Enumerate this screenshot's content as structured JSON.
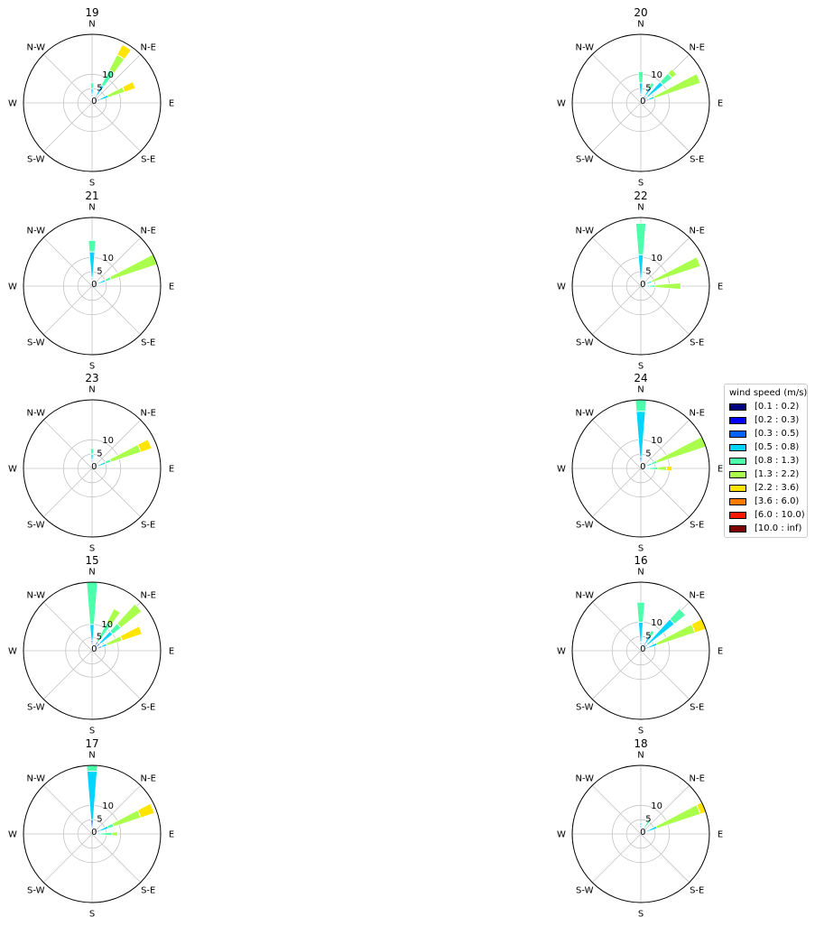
{
  "figure": {
    "direction_labels": [
      "N",
      "N-E",
      "E",
      "S-E",
      "S",
      "S-W",
      "W",
      "N-W"
    ]
  },
  "legend": {
    "title": "wind speed (m/s)",
    "bins": [
      {
        "label": "[0.1 : 0.2)",
        "color": "#00007f"
      },
      {
        "label": "[0.2 : 0.3)",
        "color": "#0000ff"
      },
      {
        "label": "[0.3 : 0.5)",
        "color": "#0063ff"
      },
      {
        "label": "[0.5 : 0.8)",
        "color": "#00d4ff"
      },
      {
        "label": "[0.8 : 1.3)",
        "color": "#4dffaa"
      },
      {
        "label": "[1.3 : 2.2)",
        "color": "#aaff4d"
      },
      {
        "label": "[2.2 : 3.6)",
        "color": "#ffe500"
      },
      {
        "label": "[3.6 : 6.0)",
        "color": "#ff7b00"
      },
      {
        "label": "[6.0 : 10.0)",
        "color": "#ff1700"
      },
      {
        "label": "[10.0 : inf)",
        "color": "#7f0000"
      }
    ]
  },
  "chart_data": [
    {
      "type": "windrose",
      "title": "19",
      "r_ticks": [
        0,
        5,
        10
      ],
      "r_max": 24,
      "directions": [
        {
          "dir": "N",
          "stacks": [
            [
              0.3,
              3
            ],
            [
              0.5,
              5
            ],
            [
              0.8,
              7
            ]
          ]
        },
        {
          "dir": "N-NE",
          "stacks": [
            [
              0.3,
              3
            ],
            [
              0.5,
              7
            ],
            [
              0.8,
              13
            ],
            [
              1.3,
              19
            ],
            [
              2.2,
              23
            ]
          ]
        },
        {
          "dir": "NE-E",
          "stacks": [
            [
              0.3,
              3
            ],
            [
              0.5,
              6
            ],
            [
              1.3,
              12
            ],
            [
              2.2,
              16
            ]
          ]
        }
      ]
    },
    {
      "type": "windrose",
      "title": "20",
      "r_ticks": [
        0,
        5,
        10
      ],
      "r_max": 24,
      "directions": [
        {
          "dir": "N",
          "stacks": [
            [
              0.3,
              3
            ],
            [
              0.5,
              7
            ],
            [
              0.8,
              11
            ]
          ]
        },
        {
          "dir": "N-NE",
          "stacks": [
            [
              0.3,
              3
            ],
            [
              0.5,
              6
            ],
            [
              0.8,
              8
            ]
          ]
        },
        {
          "dir": "NE",
          "stacks": [
            [
              0.3,
              3
            ],
            [
              0.5,
              10
            ],
            [
              0.8,
              14
            ],
            [
              1.3,
              16
            ]
          ]
        },
        {
          "dir": "NE-E",
          "stacks": [
            [
              0.3,
              3
            ],
            [
              0.5,
              5
            ],
            [
              1.3,
              22
            ]
          ]
        }
      ]
    },
    {
      "type": "windrose",
      "title": "21",
      "r_ticks": [
        0,
        5,
        10
      ],
      "r_max": 24,
      "directions": [
        {
          "dir": "N",
          "stacks": [
            [
              0.3,
              3
            ],
            [
              0.5,
              12
            ],
            [
              0.8,
              16
            ]
          ]
        },
        {
          "dir": "NE-E",
          "stacks": [
            [
              0.3,
              2
            ],
            [
              0.5,
              5
            ],
            [
              0.8,
              7
            ],
            [
              1.3,
              24
            ]
          ]
        }
      ]
    },
    {
      "type": "windrose",
      "title": "22",
      "r_ticks": [
        0,
        5,
        10
      ],
      "r_max": 24,
      "directions": [
        {
          "dir": "N",
          "stacks": [
            [
              0.3,
              2
            ],
            [
              0.5,
              11
            ],
            [
              0.8,
              22
            ]
          ]
        },
        {
          "dir": "NE-E",
          "stacks": [
            [
              0.3,
              2
            ],
            [
              0.5,
              4
            ],
            [
              1.3,
              22
            ]
          ]
        },
        {
          "dir": "E",
          "stacks": [
            [
              0.5,
              3
            ],
            [
              0.8,
              5
            ],
            [
              1.3,
              14
            ]
          ]
        }
      ]
    },
    {
      "type": "windrose",
      "title": "23",
      "r_ticks": [
        0,
        5,
        10
      ],
      "r_max": 24,
      "directions": [
        {
          "dir": "N",
          "stacks": [
            [
              0.3,
              3
            ],
            [
              0.5,
              5
            ],
            [
              0.8,
              7
            ]
          ]
        },
        {
          "dir": "NE-E",
          "stacks": [
            [
              0.3,
              2
            ],
            [
              0.5,
              5
            ],
            [
              0.8,
              7
            ],
            [
              1.3,
              18
            ],
            [
              2.2,
              22
            ]
          ]
        }
      ]
    },
    {
      "type": "windrose",
      "title": "24",
      "r_ticks": [
        0,
        5,
        10
      ],
      "r_max": 24,
      "directions": [
        {
          "dir": "N",
          "stacks": [
            [
              0.3,
              4
            ],
            [
              0.5,
              20
            ],
            [
              0.8,
              24
            ]
          ]
        },
        {
          "dir": "NE-E",
          "stacks": [
            [
              0.3,
              2
            ],
            [
              0.5,
              4
            ],
            [
              0.8,
              6
            ],
            [
              1.3,
              24
            ]
          ]
        },
        {
          "dir": "E",
          "stacks": [
            [
              0.5,
              3
            ],
            [
              0.8,
              6
            ],
            [
              1.3,
              9
            ],
            [
              2.2,
              11
            ]
          ]
        }
      ]
    },
    {
      "type": "windrose",
      "title": "15",
      "r_ticks": [
        0,
        5,
        10
      ],
      "r_max": 26,
      "directions": [
        {
          "dir": "N",
          "stacks": [
            [
              0.3,
              4
            ],
            [
              0.5,
              10
            ],
            [
              0.8,
              26
            ]
          ]
        },
        {
          "dir": "N-NE",
          "stacks": [
            [
              0.3,
              4
            ],
            [
              0.8,
              12
            ],
            [
              1.3,
              18
            ]
          ]
        },
        {
          "dir": "NE",
          "stacks": [
            [
              0.3,
              4
            ],
            [
              0.5,
              10
            ],
            [
              0.8,
              14
            ],
            [
              1.3,
              24
            ]
          ]
        },
        {
          "dir": "NE-E",
          "stacks": [
            [
              0.3,
              4
            ],
            [
              0.5,
              6
            ],
            [
              1.3,
              12
            ],
            [
              2.2,
              20
            ]
          ]
        }
      ]
    },
    {
      "type": "windrose",
      "title": "16",
      "r_ticks": [
        0,
        5,
        10
      ],
      "r_max": 24,
      "directions": [
        {
          "dir": "N",
          "stacks": [
            [
              0.3,
              3
            ],
            [
              0.5,
              10
            ],
            [
              0.8,
              17
            ]
          ]
        },
        {
          "dir": "N-NE",
          "stacks": [
            [
              0.3,
              3
            ],
            [
              0.5,
              6
            ],
            [
              0.8,
              8
            ]
          ]
        },
        {
          "dir": "NE",
          "stacks": [
            [
              0.3,
              3
            ],
            [
              0.5,
              15
            ],
            [
              0.8,
              20
            ]
          ]
        },
        {
          "dir": "NE-E",
          "stacks": [
            [
              0.3,
              3
            ],
            [
              0.5,
              6
            ],
            [
              1.3,
              20
            ],
            [
              2.2,
              24
            ]
          ]
        }
      ]
    },
    {
      "type": "windrose",
      "title": "17",
      "r_ticks": [
        0,
        5,
        10
      ],
      "r_max": 24,
      "directions": [
        {
          "dir": "N",
          "stacks": [
            [
              0.3,
              5
            ],
            [
              0.5,
              22
            ],
            [
              0.8,
              24
            ]
          ]
        },
        {
          "dir": "NE-E",
          "stacks": [
            [
              0.3,
              3
            ],
            [
              0.5,
              6
            ],
            [
              0.8,
              8
            ],
            [
              1.3,
              18
            ],
            [
              2.2,
              23
            ]
          ]
        },
        {
          "dir": "E",
          "stacks": [
            [
              0.5,
              3
            ],
            [
              0.8,
              7
            ],
            [
              1.3,
              9
            ]
          ]
        }
      ]
    },
    {
      "type": "windrose",
      "title": "18",
      "r_ticks": [
        0,
        5,
        10
      ],
      "r_max": 24,
      "directions": [
        {
          "dir": "N",
          "stacks": [
            [
              0.3,
              3
            ],
            [
              0.5,
              4
            ]
          ]
        },
        {
          "dir": "N-NE",
          "stacks": [
            [
              0.3,
              2
            ],
            [
              0.8,
              6
            ]
          ]
        },
        {
          "dir": "NE-E",
          "stacks": [
            [
              0.3,
              2
            ],
            [
              0.5,
              6
            ],
            [
              1.3,
              22
            ],
            [
              2.2,
              24
            ]
          ]
        }
      ]
    }
  ]
}
